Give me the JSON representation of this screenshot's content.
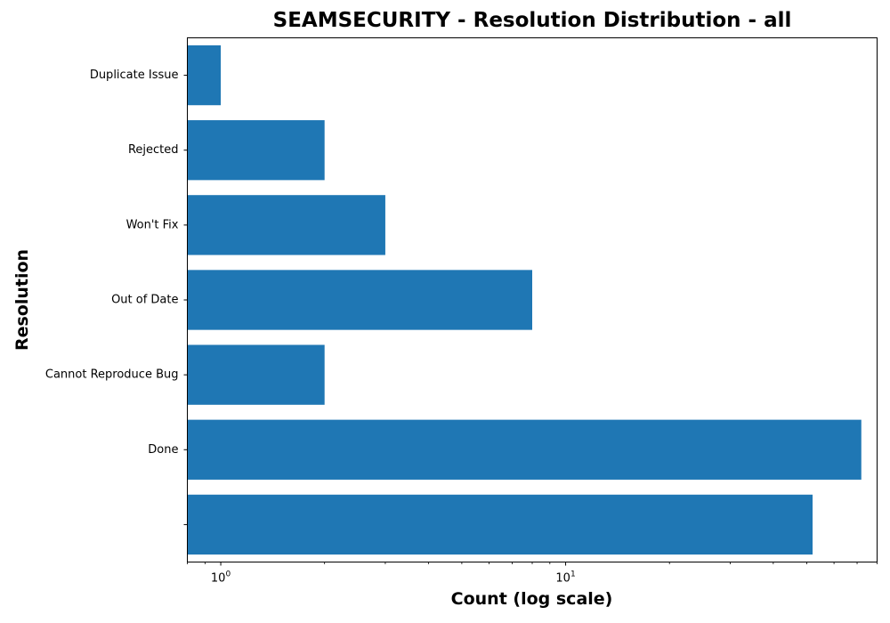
{
  "chart_data": {
    "type": "bar",
    "orientation": "horizontal",
    "title": "SEAMSECURITY - Resolution Distribution - all",
    "xlabel": "Count (log scale)",
    "ylabel": "Resolution",
    "x_scale": "log",
    "xlim": [
      0.8,
      80
    ],
    "x_ticks": [
      {
        "value": 1,
        "base": "10",
        "exp": "0"
      },
      {
        "value": 10,
        "base": "10",
        "exp": "1"
      }
    ],
    "categories": [
      "Duplicate Issue",
      "Rejected",
      "Won't Fix",
      "Out of Date",
      "Cannot Reproduce Bug",
      "Done",
      ""
    ],
    "values": [
      1,
      2,
      3,
      8,
      2,
      72,
      52
    ],
    "bar_color": "#1f77b4",
    "grid": false
  }
}
